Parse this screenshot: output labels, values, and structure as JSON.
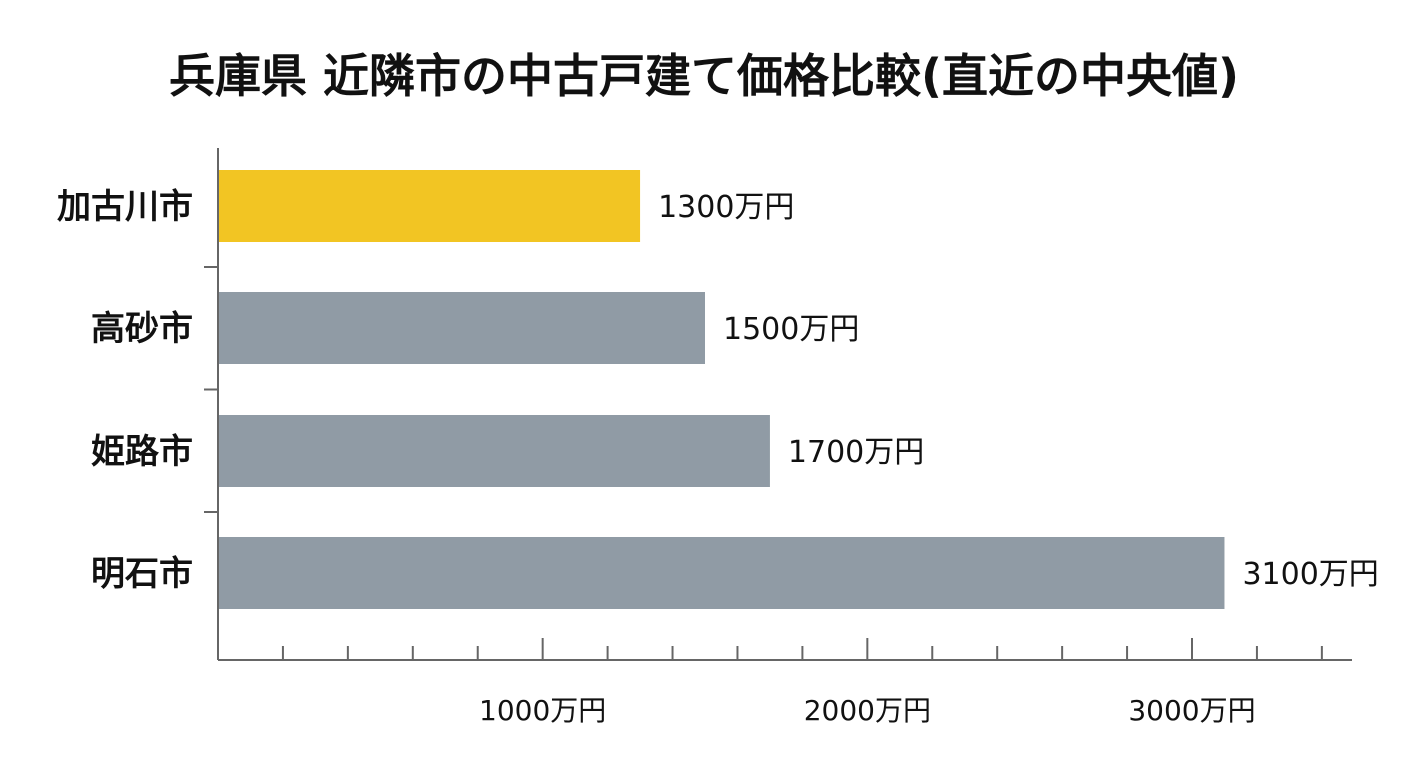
{
  "chart_data": {
    "type": "bar",
    "orientation": "horizontal",
    "title": "兵庫県 近隣市の中古戸建て価格比較(直近の中央値)",
    "categories": [
      "加古川市",
      "高砂市",
      "姫路市",
      "明石市"
    ],
    "values": [
      1300,
      1500,
      1700,
      3100
    ],
    "value_labels": [
      "1300万円",
      "1500万円",
      "1700万円",
      "3100万円"
    ],
    "highlight_index": 0,
    "colors": {
      "highlight": "#F2C523",
      "default": "#909BA5"
    },
    "xlim": [
      0,
      3500
    ],
    "x_ticks": [
      1000,
      2000,
      3000
    ],
    "x_tick_labels": [
      "1000万円",
      "2000万円",
      "3000万円"
    ],
    "minor_tick_step": 200,
    "xlabel": "",
    "ylabel": "",
    "grid": false,
    "legend": "none"
  }
}
